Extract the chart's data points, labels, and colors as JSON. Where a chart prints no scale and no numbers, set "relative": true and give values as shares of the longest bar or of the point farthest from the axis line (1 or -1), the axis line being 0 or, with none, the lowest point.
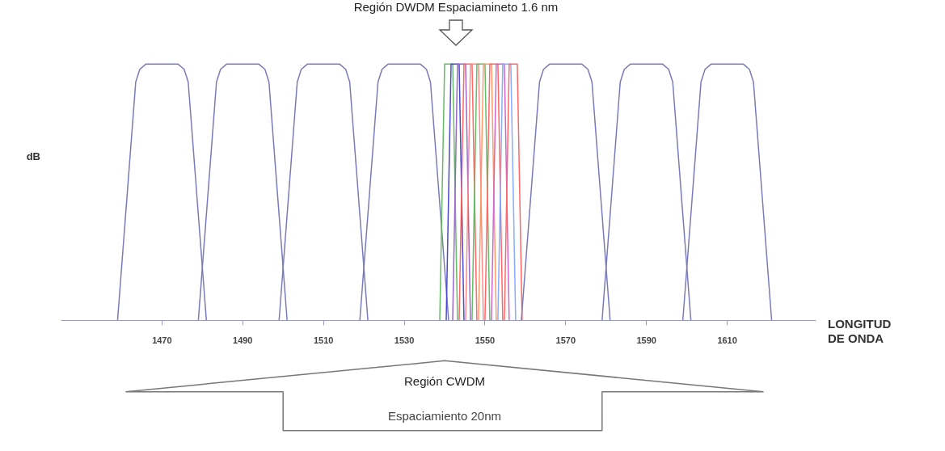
{
  "chart_data": {
    "type": "line",
    "relative": true,
    "xlabel": "LONGITUD\nDE ONDA",
    "ylabel": "dB",
    "xlim": [
      1445,
      1632
    ],
    "xticks": [
      1470,
      1490,
      1510,
      1530,
      1550,
      1570,
      1590,
      1610
    ],
    "annotations": [
      "Región DWDM Espaciamineto 1.6 nm",
      "Región CWDM",
      "Espaciamiento 20nm"
    ],
    "series": [
      {
        "color": "#7a7ab8",
        "x": [
          1459,
          1463.5,
          1464.5,
          1466,
          1474,
          1475.5,
          1476.5,
          1481
        ],
        "values": [
          0,
          0.93,
          0.98,
          1,
          1,
          0.98,
          0.93,
          0
        ]
      },
      {
        "color": "#7a7ab8",
        "x": [
          1479,
          1483.5,
          1484.5,
          1486,
          1494,
          1495.5,
          1496.5,
          1501
        ],
        "values": [
          0,
          0.93,
          0.98,
          1,
          1,
          0.98,
          0.93,
          0
        ]
      },
      {
        "color": "#7a7ab8",
        "x": [
          1499,
          1503.5,
          1504.5,
          1506,
          1514,
          1515.5,
          1516.5,
          1521
        ],
        "values": [
          0,
          0.93,
          0.98,
          1,
          1,
          0.98,
          0.93,
          0
        ]
      },
      {
        "color": "#7a7ab8",
        "x": [
          1519,
          1523.5,
          1524.5,
          1526,
          1534,
          1535.5,
          1536.5,
          1541
        ],
        "values": [
          0,
          0.93,
          0.98,
          1,
          1,
          0.98,
          0.93,
          0
        ]
      },
      {
        "color": "#66bb66",
        "x": [
          1538.8,
          1540.0,
          1542.0,
          1543.2
        ],
        "values": [
          0,
          1,
          1,
          0
        ]
      },
      {
        "color": "#4a4acc",
        "x": [
          1540.4,
          1541.6,
          1543.6,
          1544.8
        ],
        "values": [
          0,
          1,
          1,
          0
        ]
      },
      {
        "color": "#9966cc",
        "x": [
          1542.0,
          1543.2,
          1545.2,
          1546.4
        ],
        "values": [
          0,
          1,
          1,
          0
        ]
      },
      {
        "color": "#ff6666",
        "x": [
          1543.6,
          1544.8,
          1546.8,
          1548.0
        ],
        "values": [
          0,
          1,
          1,
          0
        ]
      },
      {
        "color": "#ff8888",
        "x": [
          1545.2,
          1546.4,
          1548.4,
          1549.6
        ],
        "values": [
          0,
          1,
          1,
          0
        ]
      },
      {
        "color": "#66bb66",
        "x": [
          1546.8,
          1548.0,
          1550.0,
          1551.2
        ],
        "values": [
          0,
          1,
          1,
          0
        ]
      },
      {
        "color": "#ff9966",
        "x": [
          1548.4,
          1549.6,
          1551.6,
          1552.8
        ],
        "values": [
          0,
          1,
          1,
          0
        ]
      },
      {
        "color": "#ff6666",
        "x": [
          1550.0,
          1551.2,
          1553.2,
          1554.4
        ],
        "values": [
          0,
          1,
          1,
          0
        ]
      },
      {
        "color": "#cc66cc",
        "x": [
          1551.6,
          1552.8,
          1554.8,
          1556.0
        ],
        "values": [
          0,
          1,
          1,
          0
        ]
      },
      {
        "color": "#88aaff",
        "x": [
          1553.2,
          1554.4,
          1556.4,
          1557.6
        ],
        "values": [
          0,
          1,
          1,
          0
        ]
      },
      {
        "color": "#ff6666",
        "x": [
          1554.8,
          1556.0,
          1558.0,
          1559.2
        ],
        "values": [
          0,
          1,
          1,
          0
        ]
      },
      {
        "color": "#7a7ab8",
        "x": [
          1559,
          1563.5,
          1564.5,
          1566,
          1574,
          1575.5,
          1576.5,
          1581
        ],
        "values": [
          0,
          0.93,
          0.98,
          1,
          1,
          0.98,
          0.93,
          0
        ]
      },
      {
        "color": "#7a7ab8",
        "x": [
          1579,
          1583.5,
          1584.5,
          1586,
          1594,
          1595.5,
          1596.5,
          1601
        ],
        "values": [
          0,
          0.93,
          0.98,
          1,
          1,
          0.98,
          0.93,
          0
        ]
      },
      {
        "color": "#7a7ab8",
        "x": [
          1599,
          1603.5,
          1604.5,
          1606,
          1614,
          1615.5,
          1616.5,
          1621
        ],
        "values": [
          0,
          0.93,
          0.98,
          1,
          1,
          0.98,
          0.93,
          0
        ]
      }
    ]
  }
}
